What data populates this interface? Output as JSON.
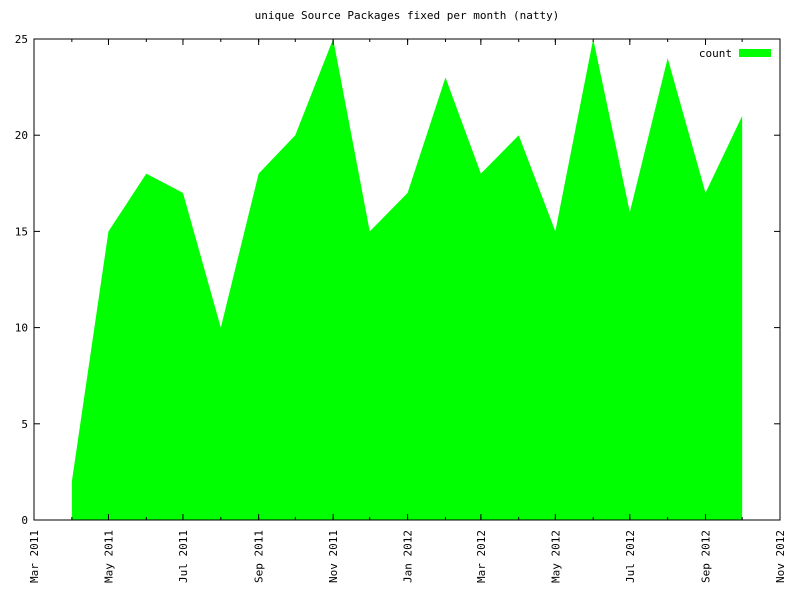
{
  "chart_data": {
    "type": "area",
    "title": "unique Source Packages fixed per month (natty)",
    "x": [
      "2011-04",
      "2011-05",
      "2011-06",
      "2011-07",
      "2011-08",
      "2011-09",
      "2011-10",
      "2011-11",
      "2011-12",
      "2012-01",
      "2012-02",
      "2012-03",
      "2012-04",
      "2012-05",
      "2012-06",
      "2012-07",
      "2012-08",
      "2012-09",
      "2012-10"
    ],
    "series": [
      {
        "name": "count",
        "color": "#00ff00",
        "values": [
          2,
          15,
          18,
          17,
          10,
          18,
          20,
          25,
          15,
          17,
          23,
          18,
          20,
          15,
          25,
          16,
          24,
          17,
          21
        ]
      }
    ],
    "xlim": [
      "2011-03",
      "2012-11"
    ],
    "xticks": [
      {
        "value": "2011-03",
        "label": "Mar 2011"
      },
      {
        "value": "2011-05",
        "label": "May 2011"
      },
      {
        "value": "2011-07",
        "label": "Jul 2011"
      },
      {
        "value": "2011-09",
        "label": "Sep 2011"
      },
      {
        "value": "2011-11",
        "label": "Nov 2011"
      },
      {
        "value": "2012-01",
        "label": "Jan 2012"
      },
      {
        "value": "2012-03",
        "label": "Mar 2012"
      },
      {
        "value": "2012-05",
        "label": "May 2012"
      },
      {
        "value": "2012-07",
        "label": "Jul 2012"
      },
      {
        "value": "2012-09",
        "label": "Sep 2012"
      },
      {
        "value": "2012-11",
        "label": "Nov 2012"
      }
    ],
    "ylim": [
      0,
      25
    ],
    "yticks": [
      0,
      5,
      10,
      15,
      20,
      25
    ],
    "legend": "top-right"
  }
}
